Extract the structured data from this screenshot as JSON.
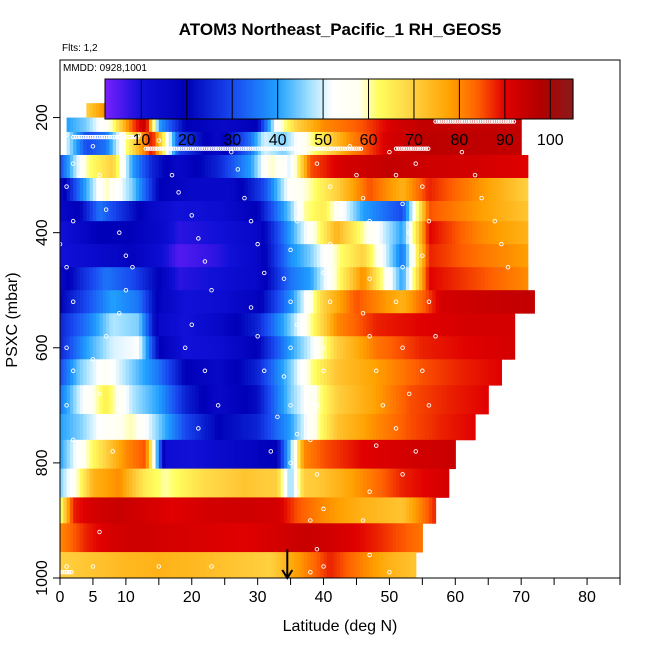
{
  "chart_data": {
    "type": "heatmap",
    "title": "ATOM3 Northeast_Pacific_1 RH_GEOS5",
    "flights_label": "Flts: 1,2",
    "date_label": "MMDD: 0928,1001",
    "xlabel": "Latitude (deg N)",
    "ylabel": "PSXC (mbar)",
    "xlim": [
      0,
      85
    ],
    "ylim": [
      1000,
      100
    ],
    "x_ticks": [
      0,
      5,
      10,
      20,
      30,
      40,
      50,
      60,
      70,
      80
    ],
    "x_tick_labels": [
      "0",
      "5",
      "10",
      "20",
      "30",
      "40",
      "50",
      "60",
      "70",
      "80"
    ],
    "x_minor_ticks": [
      15,
      25,
      35,
      45,
      55,
      65,
      75,
      85
    ],
    "y_ticks": [
      200,
      400,
      600,
      800,
      1000
    ],
    "y_tick_labels": [
      "200",
      "400",
      "600",
      "800",
      "1000"
    ],
    "colorbar": {
      "min": 2,
      "max": 105,
      "ticks": [
        10,
        20,
        30,
        40,
        50,
        60,
        70,
        80,
        90,
        100
      ],
      "tick_labels": [
        "10",
        "20",
        "30",
        "40",
        "50",
        "60",
        "70",
        "80",
        "90",
        "100"
      ],
      "stops": [
        [
          2,
          "#7b1fff"
        ],
        [
          10,
          "#1010d8"
        ],
        [
          20,
          "#0000b8"
        ],
        [
          30,
          "#1848f0"
        ],
        [
          40,
          "#20a0ff"
        ],
        [
          47,
          "#a0e0ff"
        ],
        [
          52,
          "#ffffff"
        ],
        [
          58,
          "#fffff0"
        ],
        [
          62,
          "#ffff60"
        ],
        [
          70,
          "#ffd040"
        ],
        [
          78,
          "#ffa000"
        ],
        [
          84,
          "#ff6000"
        ],
        [
          90,
          "#e00000"
        ],
        [
          98,
          "#b00000"
        ],
        [
          105,
          "#8b1a1a"
        ]
      ]
    },
    "layers": [
      {
        "p": [
          175,
          200
        ],
        "x": [
          4,
          9,
          11,
          13,
          15,
          17,
          20,
          27,
          33
        ],
        "v": [
          70,
          88,
          95,
          40,
          20,
          25,
          20,
          15,
          20
        ]
      },
      {
        "p": [
          200,
          225
        ],
        "x": [
          1,
          4,
          8,
          11,
          13,
          15,
          19,
          25,
          30,
          33,
          36,
          40,
          46,
          51,
          55,
          70
        ],
        "v": [
          40,
          45,
          60,
          85,
          95,
          40,
          20,
          15,
          20,
          55,
          70,
          80,
          85,
          92,
          95,
          95
        ]
      },
      {
        "p": [
          225,
          265
        ],
        "x": [
          1,
          4,
          7,
          10,
          12,
          14,
          18,
          24,
          29,
          31,
          34,
          38,
          44,
          50,
          56,
          70
        ],
        "v": [
          50,
          30,
          35,
          60,
          75,
          90,
          30,
          15,
          35,
          50,
          45,
          60,
          80,
          92,
          96,
          95
        ]
      },
      {
        "p": [
          265,
          305
        ],
        "x": [
          0,
          4,
          8,
          11,
          14,
          18,
          24,
          29,
          32,
          35,
          38,
          43,
          50,
          56,
          64,
          71
        ],
        "v": [
          30,
          60,
          70,
          40,
          25,
          15,
          25,
          40,
          60,
          50,
          85,
          92,
          95,
          93,
          92,
          90
        ]
      },
      {
        "p": [
          305,
          345
        ],
        "x": [
          0,
          3,
          7,
          11,
          15,
          20,
          26,
          31,
          35,
          38,
          42,
          47,
          52,
          56,
          63,
          71
        ],
        "v": [
          15,
          35,
          60,
          45,
          20,
          15,
          15,
          30,
          55,
          60,
          70,
          85,
          75,
          88,
          80,
          70
        ]
      },
      {
        "p": [
          345,
          380
        ],
        "x": [
          0,
          3,
          6,
          10,
          14,
          18,
          24,
          30,
          35,
          37,
          40,
          46,
          52,
          56,
          64,
          71
        ],
        "v": [
          15,
          20,
          35,
          25,
          15,
          10,
          12,
          20,
          45,
          60,
          65,
          40,
          30,
          85,
          78,
          72
        ]
      },
      {
        "p": [
          380,
          420
        ],
        "x": [
          0,
          3,
          6,
          10,
          15,
          18,
          24,
          30,
          35,
          38,
          42,
          46,
          52,
          56,
          64,
          71
        ],
        "v": [
          10,
          15,
          20,
          20,
          15,
          8,
          10,
          15,
          40,
          55,
          75,
          60,
          40,
          90,
          80,
          75
        ]
      },
      {
        "p": [
          420,
          460
        ],
        "x": [
          0,
          3,
          7,
          11,
          15,
          18,
          24,
          30,
          35,
          38,
          42,
          46,
          52,
          56,
          64,
          71
        ],
        "v": [
          10,
          12,
          15,
          18,
          12,
          5,
          8,
          15,
          38,
          45,
          60,
          70,
          35,
          88,
          82,
          78
        ]
      },
      {
        "p": [
          460,
          500
        ],
        "x": [
          0,
          3,
          7,
          11,
          15,
          18,
          23,
          30,
          35,
          38,
          42,
          46,
          52,
          56,
          64,
          71
        ],
        "v": [
          15,
          25,
          35,
          30,
          20,
          8,
          10,
          15,
          35,
          40,
          60,
          80,
          40,
          90,
          85,
          80
        ]
      },
      {
        "p": [
          500,
          540
        ],
        "x": [
          0,
          4,
          8,
          12,
          15,
          19,
          24,
          30,
          35,
          37,
          40,
          45,
          52,
          58,
          65,
          72
        ],
        "v": [
          20,
          30,
          40,
          35,
          18,
          10,
          12,
          18,
          38,
          50,
          70,
          85,
          75,
          92,
          94,
          95
        ]
      },
      {
        "p": [
          540,
          580
        ],
        "x": [
          0,
          4,
          8,
          12,
          15,
          19,
          24,
          30,
          35,
          38,
          42,
          48,
          55,
          62,
          69
        ],
        "v": [
          25,
          35,
          48,
          45,
          15,
          10,
          15,
          25,
          45,
          60,
          80,
          88,
          90,
          92,
          92
        ]
      },
      {
        "p": [
          580,
          620
        ],
        "x": [
          0,
          4,
          8,
          12,
          15,
          19,
          24,
          30,
          35,
          38,
          42,
          48,
          55,
          62,
          69
        ],
        "v": [
          25,
          40,
          50,
          52,
          20,
          10,
          12,
          20,
          40,
          50,
          70,
          82,
          88,
          90,
          92
        ]
      },
      {
        "p": [
          620,
          665
        ],
        "x": [
          0,
          3,
          7,
          11,
          15,
          19,
          24,
          30,
          35,
          38,
          42,
          48,
          55,
          61,
          67
        ],
        "v": [
          30,
          45,
          55,
          45,
          35,
          20,
          15,
          25,
          45,
          60,
          72,
          78,
          85,
          88,
          90
        ]
      },
      {
        "p": [
          665,
          715
        ],
        "x": [
          0,
          3,
          7,
          11,
          15,
          19,
          24,
          30,
          35,
          38,
          42,
          48,
          53,
          59,
          65
        ],
        "v": [
          35,
          50,
          65,
          48,
          40,
          25,
          15,
          22,
          45,
          55,
          70,
          78,
          85,
          88,
          90
        ]
      },
      {
        "p": [
          715,
          760
        ],
        "x": [
          0,
          3,
          7,
          11,
          15,
          19,
          24,
          30,
          35,
          38,
          42,
          48,
          53,
          58,
          63
        ],
        "v": [
          40,
          45,
          55,
          60,
          45,
          30,
          20,
          25,
          40,
          55,
          72,
          80,
          85,
          88,
          90
        ]
      },
      {
        "p": [
          760,
          810
        ],
        "x": [
          0,
          3,
          7,
          10,
          13,
          16,
          20,
          26,
          33,
          35,
          37,
          40,
          46,
          52,
          60
        ],
        "v": [
          40,
          55,
          70,
          80,
          85,
          12,
          10,
          15,
          20,
          45,
          80,
          85,
          90,
          92,
          94
        ]
      },
      {
        "p": [
          810,
          860
        ],
        "x": [
          0,
          2,
          5,
          9,
          13,
          16,
          22,
          28,
          33,
          35,
          37,
          40,
          46,
          52,
          59
        ],
        "v": [
          45,
          55,
          75,
          80,
          65,
          60,
          68,
          72,
          70,
          45,
          70,
          72,
          80,
          88,
          92
        ]
      },
      {
        "p": [
          860,
          905
        ],
        "x": [
          0,
          2,
          5,
          9,
          13,
          17,
          22,
          28,
          33,
          36,
          40,
          46,
          52,
          57
        ],
        "v": [
          60,
          88,
          92,
          94,
          92,
          90,
          92,
          93,
          92,
          85,
          80,
          75,
          72,
          88
        ]
      },
      {
        "p": [
          905,
          955
        ],
        "x": [
          0,
          4,
          8,
          12,
          16,
          22,
          28,
          33,
          37,
          42,
          48,
          55
        ],
        "v": [
          80,
          88,
          92,
          93,
          92,
          91,
          90,
          92,
          94,
          92,
          88,
          82
        ]
      },
      {
        "p": [
          955,
          1000
        ],
        "x": [
          0,
          5,
          10,
          15,
          20,
          26,
          32,
          37,
          41,
          45,
          50,
          54
        ],
        "v": [
          70,
          72,
          74,
          75,
          74,
          72,
          70,
          80,
          88,
          82,
          75,
          72
        ]
      }
    ],
    "points": [
      [
        1,
        230
      ],
      [
        2,
        280
      ],
      [
        1,
        320
      ],
      [
        3,
        300
      ],
      [
        2,
        380
      ],
      [
        0,
        420
      ],
      [
        1,
        460
      ],
      [
        2,
        520
      ],
      [
        1,
        600
      ],
      [
        2,
        640
      ],
      [
        1,
        700
      ],
      [
        2,
        760
      ],
      [
        3,
        800
      ],
      [
        2,
        850
      ],
      [
        1,
        980
      ],
      [
        5,
        250
      ],
      [
        6,
        300
      ],
      [
        7,
        360
      ],
      [
        9,
        400
      ],
      [
        10,
        440
      ],
      [
        11,
        460
      ],
      [
        10,
        500
      ],
      [
        9,
        540
      ],
      [
        7,
        580
      ],
      [
        5,
        620
      ],
      [
        6,
        680
      ],
      [
        7,
        720
      ],
      [
        8,
        780
      ],
      [
        6,
        920
      ],
      [
        5,
        980
      ],
      [
        15,
        980
      ],
      [
        23,
        980
      ],
      [
        12,
        230
      ],
      [
        15,
        240
      ],
      [
        17,
        300
      ],
      [
        18,
        330
      ],
      [
        20,
        370
      ],
      [
        21,
        410
      ],
      [
        22,
        450
      ],
      [
        23,
        500
      ],
      [
        20,
        560
      ],
      [
        19,
        600
      ],
      [
        22,
        640
      ],
      [
        24,
        700
      ],
      [
        21,
        740
      ],
      [
        26,
        260
      ],
      [
        27,
        290
      ],
      [
        28,
        340
      ],
      [
        29,
        380
      ],
      [
        30,
        420
      ],
      [
        31,
        470
      ],
      [
        29,
        530
      ],
      [
        30,
        580
      ],
      [
        31,
        640
      ],
      [
        33,
        720
      ],
      [
        32,
        780
      ],
      [
        34,
        300
      ],
      [
        35,
        330
      ],
      [
        36,
        380
      ],
      [
        35,
        430
      ],
      [
        34,
        480
      ],
      [
        35,
        520
      ],
      [
        36,
        560
      ],
      [
        35,
        600
      ],
      [
        34,
        650
      ],
      [
        35,
        700
      ],
      [
        36,
        750
      ],
      [
        35,
        800
      ],
      [
        36,
        850
      ],
      [
        38,
        900
      ],
      [
        39,
        950
      ],
      [
        38,
        990
      ],
      [
        39,
        280
      ],
      [
        41,
        320
      ],
      [
        42,
        370
      ],
      [
        41,
        420
      ],
      [
        40,
        470
      ],
      [
        41,
        520
      ],
      [
        40,
        600
      ],
      [
        40,
        640
      ],
      [
        39,
        700
      ],
      [
        38,
        760
      ],
      [
        39,
        820
      ],
      [
        40,
        880
      ],
      [
        40,
        980
      ],
      [
        44,
        250
      ],
      [
        45,
        300
      ],
      [
        46,
        340
      ],
      [
        47,
        380
      ],
      [
        48,
        420
      ],
      [
        47,
        480
      ],
      [
        46,
        540
      ],
      [
        47,
        580
      ],
      [
        48,
        640
      ],
      [
        49,
        700
      ],
      [
        48,
        770
      ],
      [
        47,
        850
      ],
      [
        46,
        900
      ],
      [
        47,
        960
      ],
      [
        50,
        260
      ],
      [
        51,
        300
      ],
      [
        52,
        350
      ],
      [
        53,
        400
      ],
      [
        52,
        460
      ],
      [
        51,
        520
      ],
      [
        52,
        600
      ],
      [
        53,
        680
      ],
      [
        51,
        740
      ],
      [
        52,
        820
      ],
      [
        50,
        990
      ],
      [
        54,
        280
      ],
      [
        55,
        320
      ],
      [
        56,
        380
      ],
      [
        55,
        440
      ],
      [
        56,
        520
      ],
      [
        57,
        580
      ],
      [
        55,
        640
      ],
      [
        56,
        700
      ],
      [
        54,
        780
      ],
      [
        61,
        260
      ],
      [
        63,
        300
      ],
      [
        64,
        340
      ],
      [
        66,
        380
      ],
      [
        67,
        420
      ],
      [
        68,
        460
      ]
    ],
    "flight_tracks": [
      {
        "p": 180,
        "x": [
          10,
          13
        ]
      },
      {
        "p": 185,
        "x": [
          24,
          32
        ]
      },
      {
        "p": 207,
        "x": [
          57,
          69
        ]
      },
      {
        "p": 234,
        "x": [
          2,
          12
        ]
      },
      {
        "p": 254,
        "x": [
          13,
          36
        ]
      },
      {
        "p": 254,
        "x": [
          38,
          46
        ]
      },
      {
        "p": 254,
        "x": [
          51,
          56
        ]
      },
      {
        "p": 990,
        "x": [
          0,
          2
        ]
      }
    ],
    "marker_arrow": {
      "x": 34.5,
      "p_from": 950,
      "p_to": 1000
    }
  }
}
